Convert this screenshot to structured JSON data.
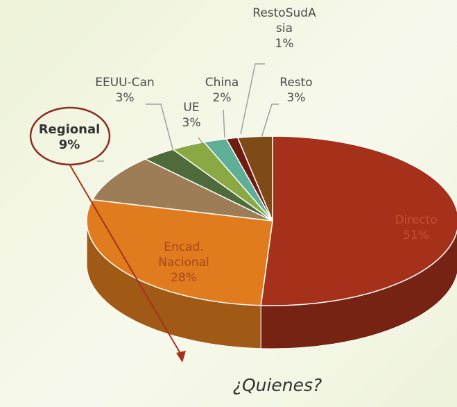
{
  "chart_data": {
    "type": "pie",
    "categories": [
      "Directo",
      "Encad. Nacional",
      "Regional",
      "EEUU-Can",
      "UE",
      "China",
      "RestoSudAsia",
      "Resto"
    ],
    "values": [
      51,
      28,
      9,
      3,
      3,
      2,
      1,
      3
    ],
    "value_labels": [
      "51%",
      "28%",
      "9%",
      "3%",
      "3%",
      "2%",
      "1%",
      "3%"
    ],
    "colors": [
      "#a5311a",
      "#e07c1e",
      "#9c7d55",
      "#4f6b3b",
      "#8ba943",
      "#5fae96",
      "#6e1b10",
      "#7e4a17"
    ],
    "annotation": "¿Quienes?"
  }
}
